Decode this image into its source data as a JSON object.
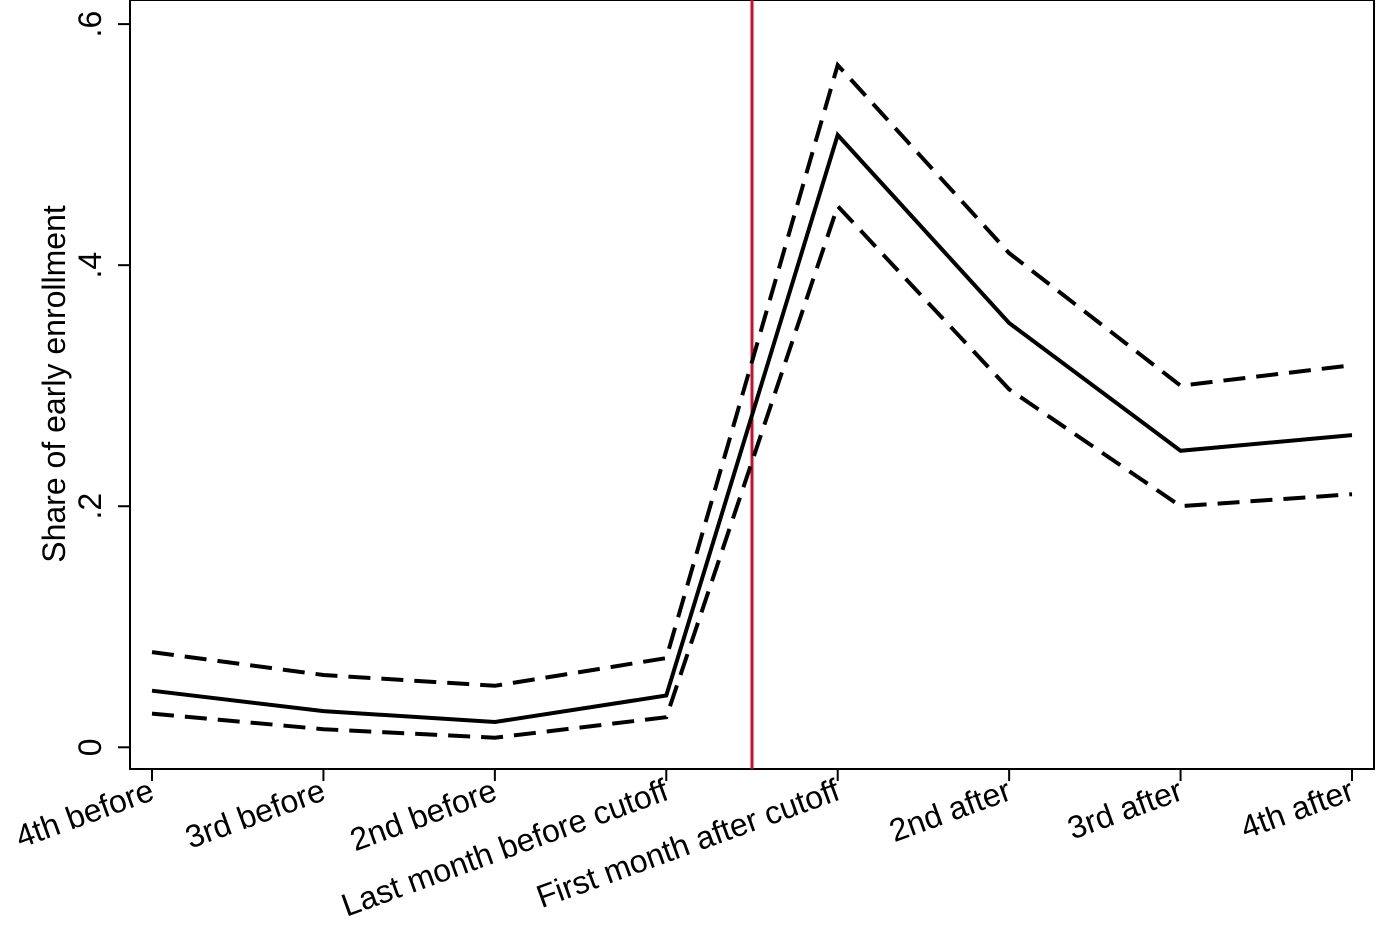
{
  "chart_data": {
    "type": "line",
    "title": "",
    "xlabel": "",
    "ylabel": "Share of early enrollment",
    "categories": [
      "4th before",
      "3rd before",
      "2nd before",
      "Last month before cutoff",
      "First month after cutoff",
      "2nd after",
      "3rd after",
      "4th after"
    ],
    "ylim": [
      -0.018,
      0.62
    ],
    "yticks": [
      0,
      0.2,
      0.4,
      0.6
    ],
    "ytick_labels": [
      "0",
      ".2",
      ".4",
      ".6"
    ],
    "series": [
      {
        "style": "solid",
        "values": [
          0.047,
          0.03,
          0.021,
          0.043,
          0.508,
          0.352,
          0.246,
          0.259
        ]
      },
      {
        "style": "dashed",
        "values": [
          0.079,
          0.06,
          0.051,
          0.074,
          0.566,
          0.41,
          0.3,
          0.317
        ]
      },
      {
        "style": "dashed",
        "values": [
          0.028,
          0.015,
          0.008,
          0.025,
          0.449,
          0.297,
          0.2,
          0.21
        ]
      }
    ],
    "cutoff_line": {
      "position": 3.5,
      "color": "#c8102e"
    },
    "grid": false,
    "line_color": "#000000"
  }
}
